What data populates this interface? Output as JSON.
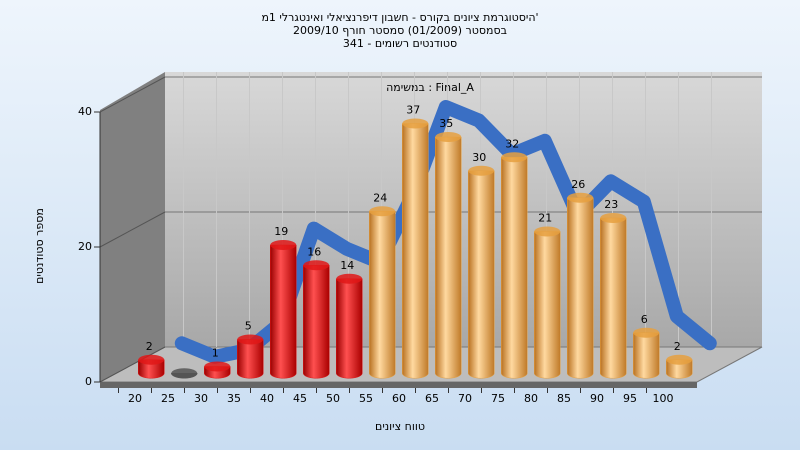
{
  "chart_data": {
    "type": "bar3d",
    "title": "היסטוגרמת ציונים בקורס - חשבון דיפרנציאלי ואינטגרלי 1מ'",
    "subtitle": "בסמסטר (01/2009) סמסטר חורף 2009/10",
    "subtitle2": "סטודנטים רשומים - 341",
    "annotation": "במשימה : Final_A",
    "x_label": "טווח ציונים",
    "y_label": "מספר סטודנטים",
    "categories": [
      "20",
      "25",
      "30",
      "35",
      "40",
      "45",
      "50",
      "55",
      "60",
      "65",
      "70",
      "75",
      "80",
      "85",
      "90",
      "95",
      "100"
    ],
    "values": [
      2,
      0,
      1,
      5,
      19,
      16,
      14,
      24,
      37,
      35,
      30,
      32,
      21,
      26,
      23,
      6,
      2
    ],
    "colors": [
      "#e01818",
      "#555555",
      "#e01818",
      "#e01818",
      "#e01818",
      "#e01818",
      "#e01818",
      "#e6a040",
      "#e6a040",
      "#e6a040",
      "#e6a040",
      "#e6a040",
      "#e6a040",
      "#e6a040",
      "#e6a040",
      "#e6a040",
      "#e6a040"
    ],
    "trend_color": "#3a6fc4",
    "ylim": [
      0,
      40
    ],
    "yticks": [
      0,
      20,
      40
    ],
    "grid": true
  }
}
